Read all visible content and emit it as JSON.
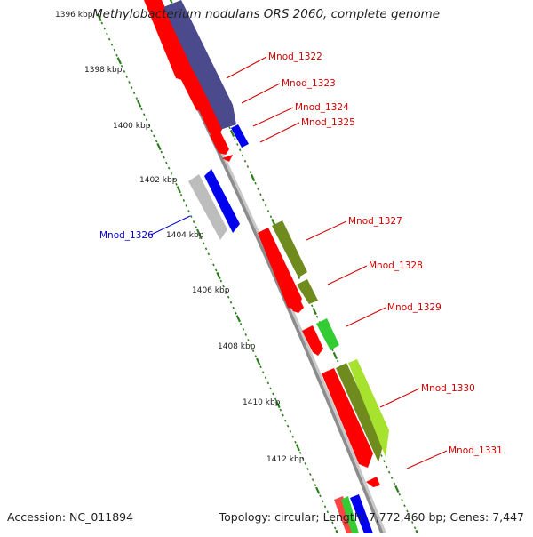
{
  "title": "Methylobacterium nodulans ORS 2060, complete genome",
  "footer": {
    "accession": "Accession: NC_011894",
    "summary": "Topology: circular; Length: 7,772,460 bp; Genes: 7,447"
  },
  "colors": {
    "backbone": "#8c8c8c",
    "tick": "#2e7d1e",
    "label_red": "#d40000",
    "label_blue": "#0000cc",
    "gene_red": "#ff0000",
    "gene_navy": "#4b4a8c",
    "gene_blue": "#0000ee",
    "gene_gray": "#bdbdbd",
    "gene_olive": "#6f8b1e",
    "gene_green": "#33cc33",
    "gene_yellowgreen": "#a6e22e"
  },
  "axis": {
    "unit": "kbp",
    "tick_labels": [
      "1396 kbp",
      "1398 kbp",
      "1400 kbp",
      "1402 kbp",
      "1404 kbp",
      "1406 kbp",
      "1408 kbp",
      "1410 kbp",
      "1412 kbp"
    ]
  },
  "gene_labels": [
    {
      "text": "Mnod_1322",
      "color": "label_red"
    },
    {
      "text": "Mnod_1323",
      "color": "label_red"
    },
    {
      "text": "Mnod_1324",
      "color": "label_red"
    },
    {
      "text": "Mnod_1325",
      "color": "label_red"
    },
    {
      "text": "Mnod_1326",
      "color": "label_blue"
    },
    {
      "text": "Mnod_1327",
      "color": "label_red"
    },
    {
      "text": "Mnod_1328",
      "color": "label_red"
    },
    {
      "text": "Mnod_1329",
      "color": "label_red"
    },
    {
      "text": "Mnod_1330",
      "color": "label_red"
    },
    {
      "text": "Mnod_1331",
      "color": "label_red"
    }
  ]
}
